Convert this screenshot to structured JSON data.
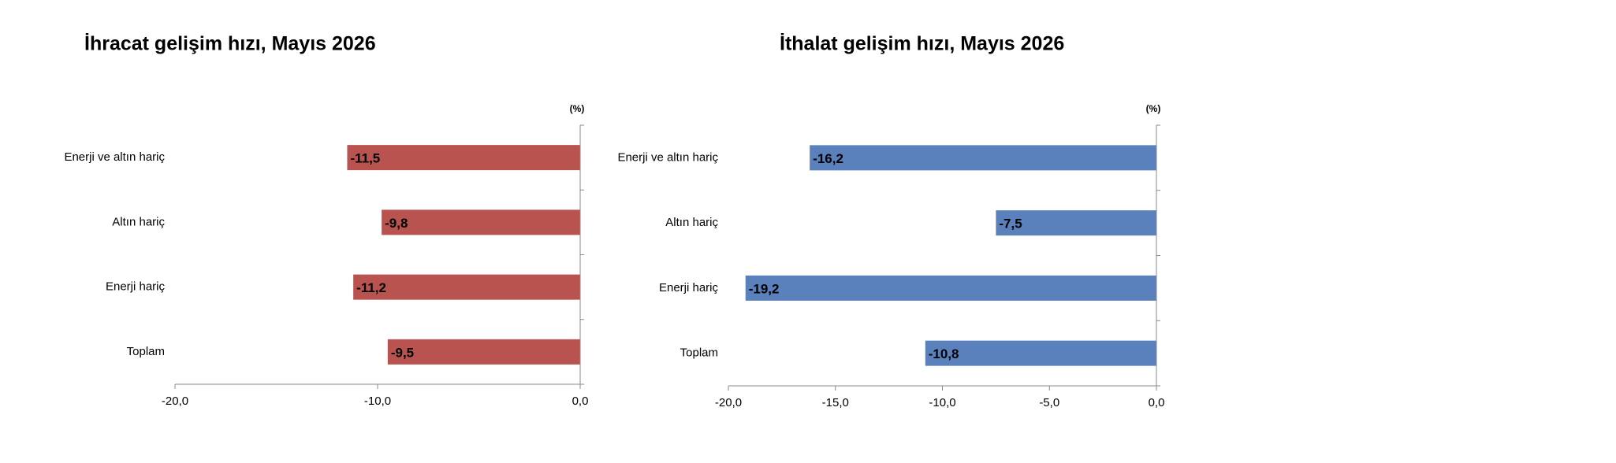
{
  "chart_data": [
    {
      "type": "bar",
      "orientation": "horizontal",
      "title": "İhracat gelişim hızı, Mayıs 2026",
      "unit": "(%)",
      "categories": [
        "Enerji ve altın hariç",
        "Altın hariç",
        "Enerji hariç",
        "Toplam"
      ],
      "values": [
        -11.5,
        -9.8,
        -11.2,
        -9.5
      ],
      "value_labels": [
        "-11,5",
        "-9,8",
        "-11,2",
        "-9,5"
      ],
      "color": "#b9534f",
      "xlim": [
        -20,
        0
      ],
      "xticks": [
        {
          "value": -20,
          "label": "-20,0"
        },
        {
          "value": -10,
          "label": "-10,0"
        },
        {
          "value": 0,
          "label": "0,0"
        }
      ]
    },
    {
      "type": "bar",
      "orientation": "horizontal",
      "title": "İthalat gelişim hızı, Mayıs 2026",
      "unit": "(%)",
      "categories": [
        "Enerji ve altın hariç",
        "Altın hariç",
        "Enerji hariç",
        "Toplam"
      ],
      "values": [
        -16.2,
        -7.5,
        -19.2,
        -10.8
      ],
      "value_labels": [
        "-16,2",
        "-7,5",
        "-19,2",
        "-10,8"
      ],
      "color": "#5a81bb",
      "xlim": [
        -20,
        0
      ],
      "xticks": [
        {
          "value": -20,
          "label": "-20,0"
        },
        {
          "value": -15,
          "label": "-15,0"
        },
        {
          "value": -10,
          "label": "-10,0"
        },
        {
          "value": -5,
          "label": "-5,0"
        },
        {
          "value": 0,
          "label": "0,0"
        }
      ]
    }
  ]
}
